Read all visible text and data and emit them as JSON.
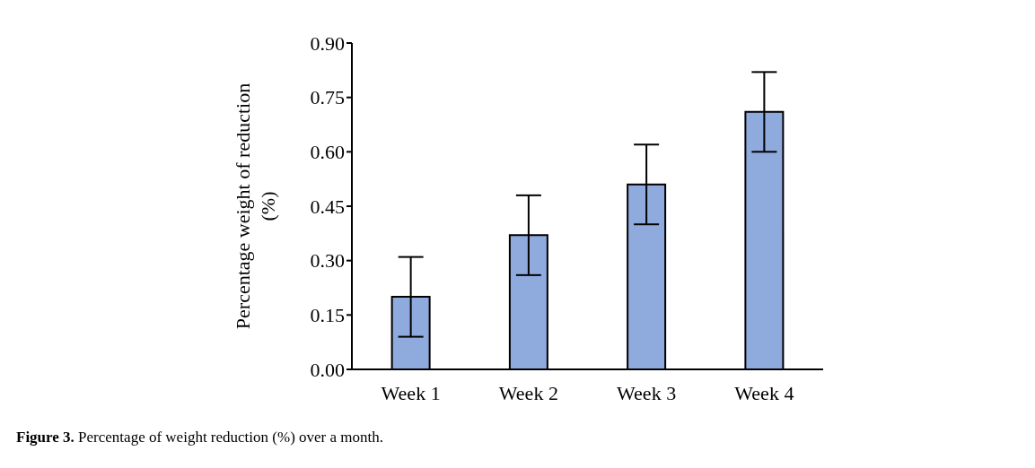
{
  "chart_data": {
    "type": "bar",
    "ylabel": "Percentage weight of reduction (%)",
    "categories": [
      "Week 1",
      "Week 2",
      "Week 3",
      "Week 4"
    ],
    "values": [
      0.2,
      0.37,
      0.51,
      0.71
    ],
    "errors": [
      0.11,
      0.11,
      0.11,
      0.11
    ],
    "color": "#8faadc",
    "ylim": [
      0,
      0.9
    ],
    "yticks": [
      {
        "value": 0,
        "label": "0.00"
      },
      {
        "value": 0.15,
        "label": "0.15"
      },
      {
        "value": 0.3,
        "label": "0.30"
      },
      {
        "value": 0.45,
        "label": "0.45"
      },
      {
        "value": 0.6,
        "label": "0.60"
      },
      {
        "value": 0.75,
        "label": "0.75"
      },
      {
        "value": 0.9,
        "label": "0.90"
      }
    ],
    "grid": false,
    "legend": false,
    "annotations": [
      "Figure 3. Percentage of weight reduction (%) over a month."
    ]
  }
}
